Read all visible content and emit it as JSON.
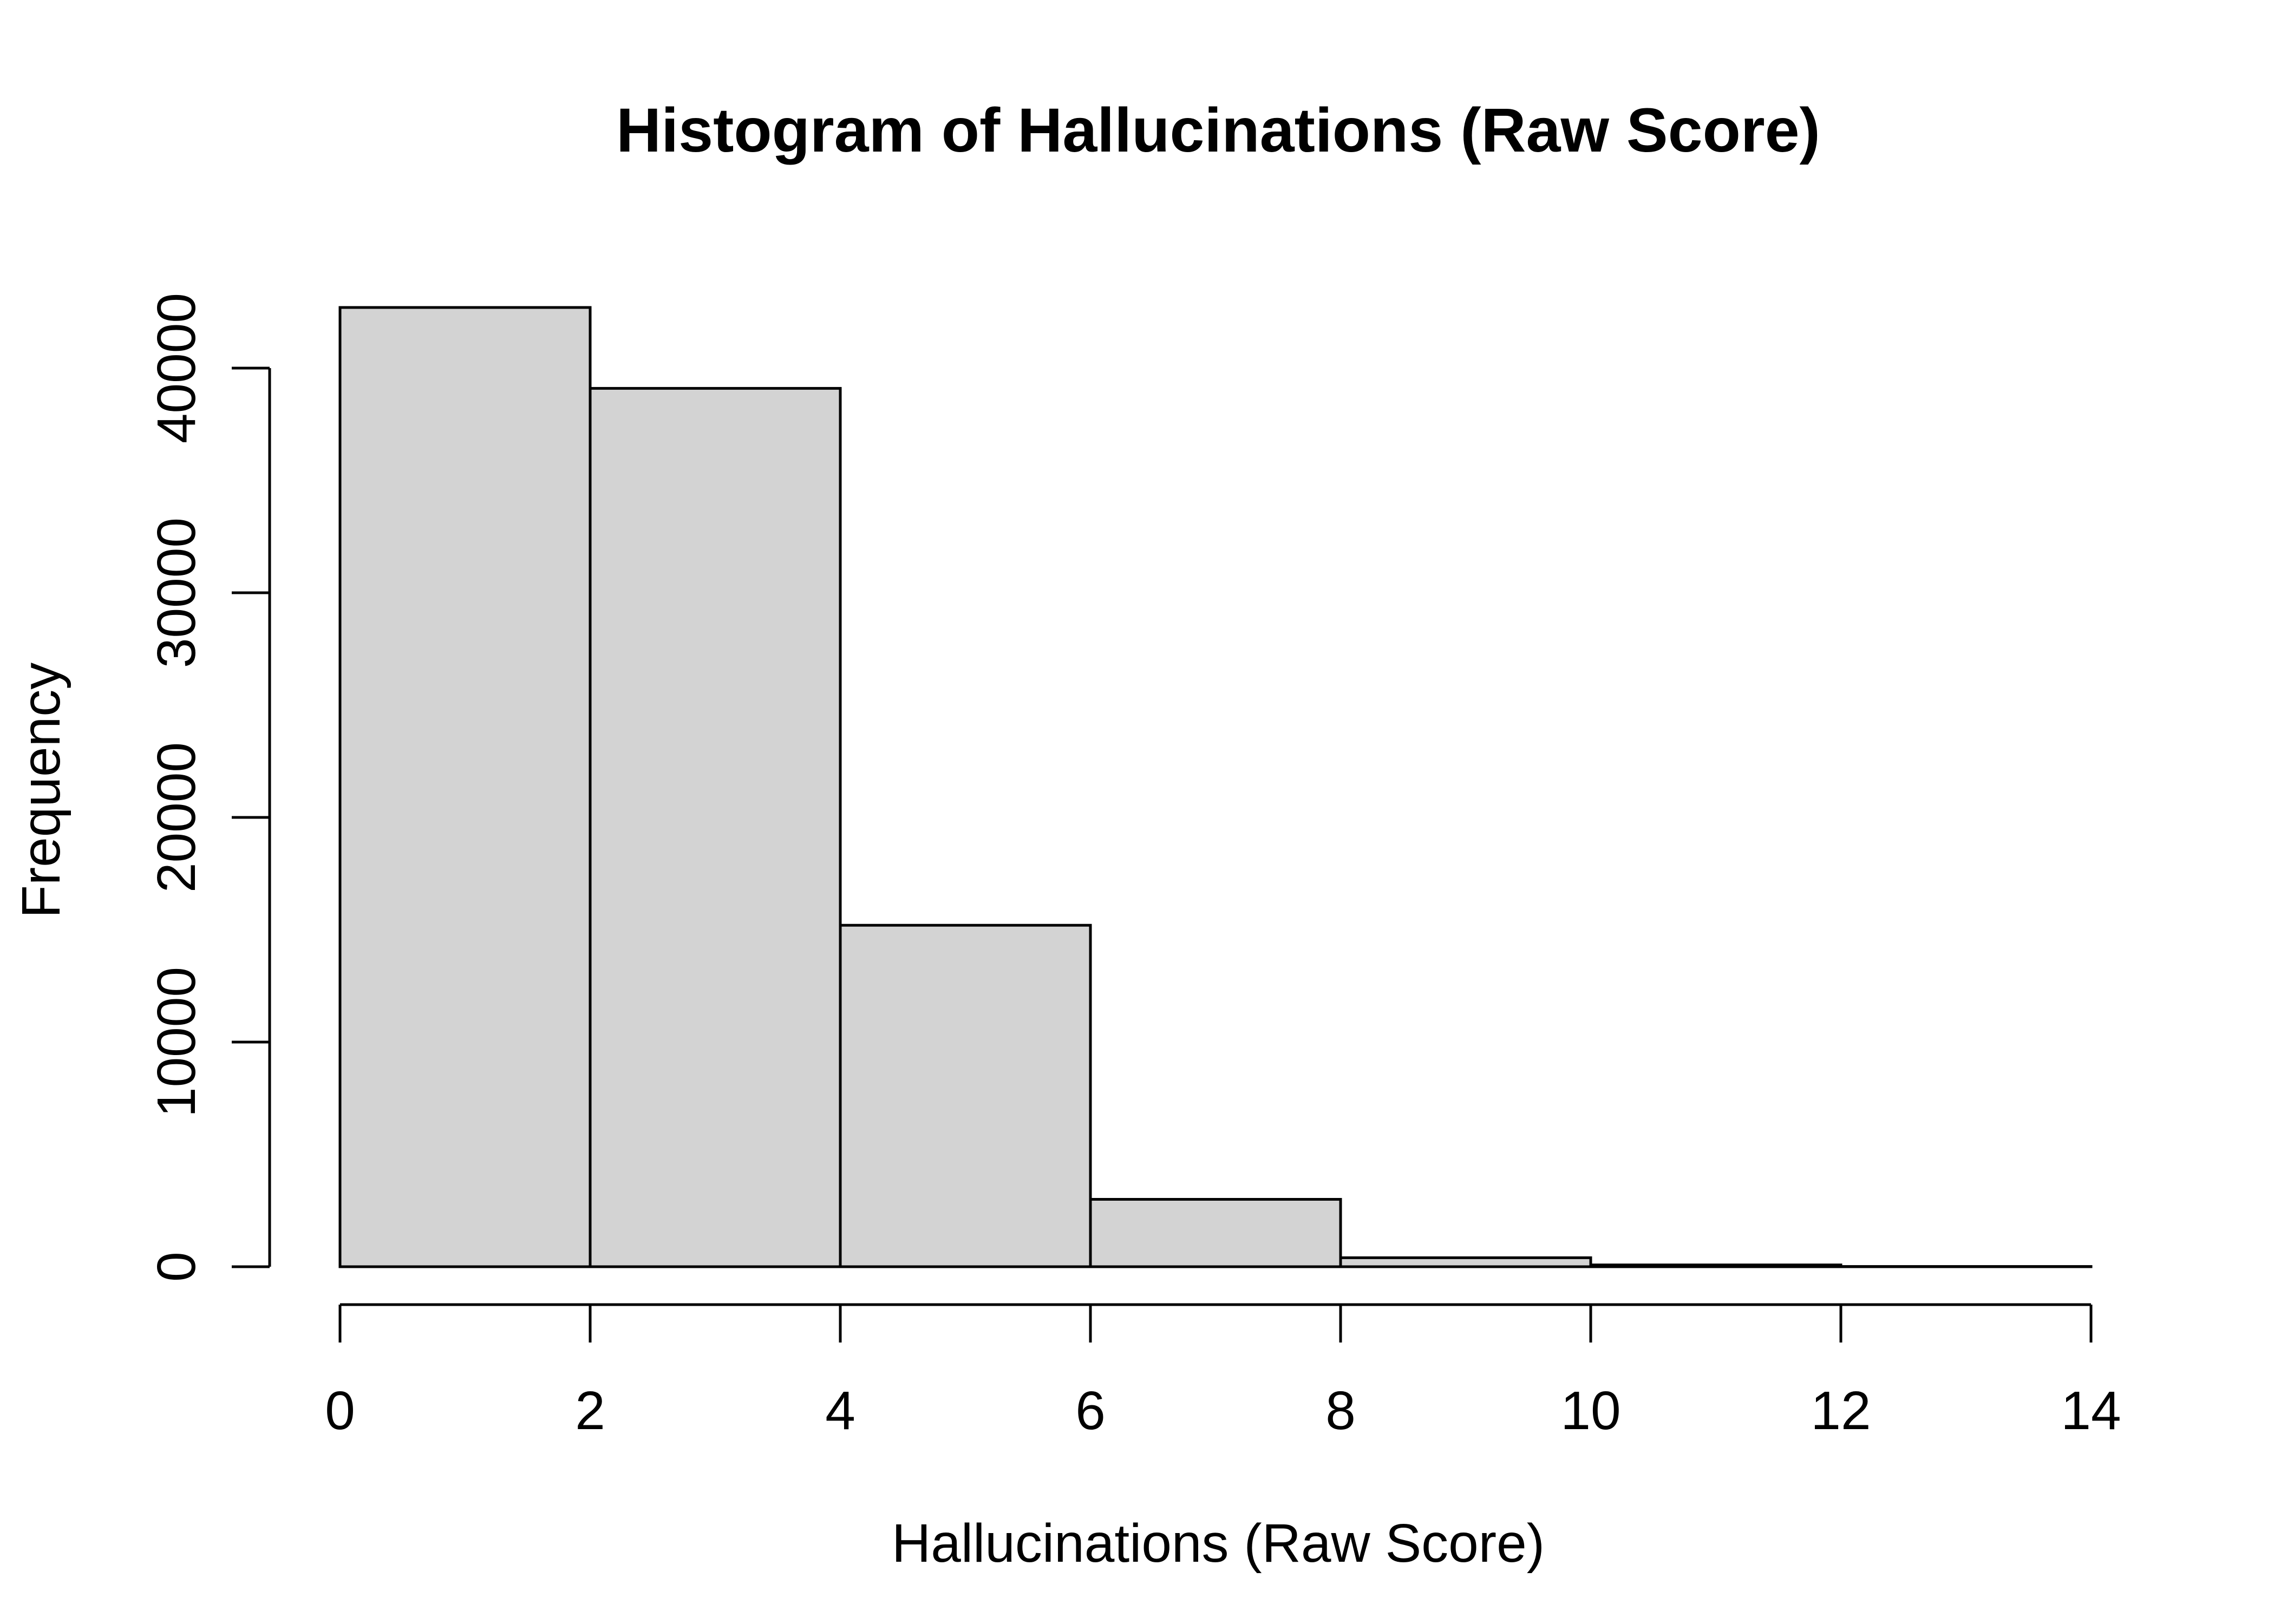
{
  "chart_data": {
    "type": "bar",
    "title": "Histogram of Hallucinations (Raw Score)",
    "xlabel": "Hallucinations (Raw Score)",
    "ylabel": "Frequency",
    "bins": [
      {
        "start": 0,
        "end": 2,
        "value": 42700
      },
      {
        "start": 2,
        "end": 4,
        "value": 39100
      },
      {
        "start": 4,
        "end": 6,
        "value": 15200
      },
      {
        "start": 6,
        "end": 8,
        "value": 3000
      },
      {
        "start": 8,
        "end": 10,
        "value": 400
      },
      {
        "start": 10,
        "end": 12,
        "value": 80
      },
      {
        "start": 12,
        "end": 14,
        "value": 10
      }
    ],
    "xlim": [
      0,
      14
    ],
    "ylim": [
      0,
      42700
    ],
    "x_ticks": [
      0,
      2,
      4,
      6,
      8,
      10,
      12,
      14
    ],
    "x_tick_labels": [
      "0",
      "2",
      "4",
      "6",
      "8",
      "10",
      "12",
      "14"
    ],
    "y_ticks": [
      0,
      10000,
      20000,
      30000,
      40000
    ],
    "y_tick_labels": [
      "0",
      "10000",
      "20000",
      "30000",
      "40000"
    ],
    "bar_fill": "#d3d3d3",
    "bar_stroke": "#000000",
    "axis_color": "#000000",
    "grid": false,
    "legend": "none"
  }
}
